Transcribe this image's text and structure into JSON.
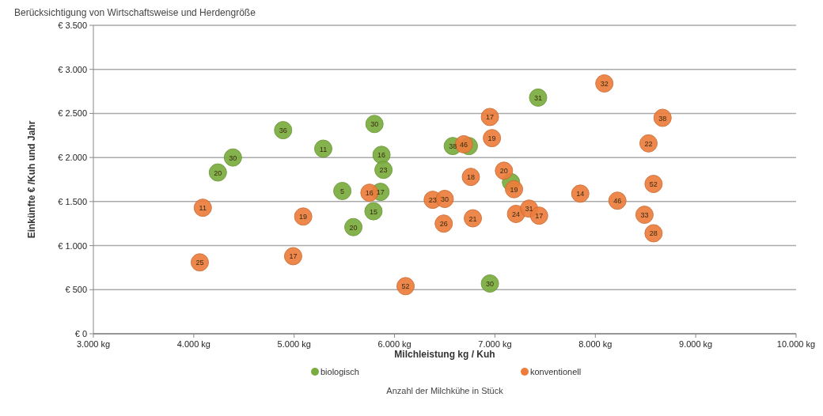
{
  "chart_data": {
    "type": "scatter",
    "title": "Berücksichtigung von Wirtschaftsweise und Herdengröße",
    "xlabel": "Milchleistung kg / Kuh",
    "ylabel": "Einkünfte € /Kuh und Jahr",
    "xlim": [
      3000,
      10000
    ],
    "ylim": [
      0,
      3500
    ],
    "xticks": [
      {
        "value": 3000,
        "label": "3.000 kg"
      },
      {
        "value": 4000,
        "label": "4.000 kg"
      },
      {
        "value": 5000,
        "label": "5.000 kg"
      },
      {
        "value": 6000,
        "label": "6.000 kg"
      },
      {
        "value": 7000,
        "label": "7.000 kg"
      },
      {
        "value": 8000,
        "label": "8.000 kg"
      },
      {
        "value": 9000,
        "label": "9.000 kg"
      },
      {
        "value": 10000,
        "label": "10.000 kg"
      }
    ],
    "yticks": [
      {
        "value": 0,
        "label": "€ 0"
      },
      {
        "value": 500,
        "label": "€ 500"
      },
      {
        "value": 1000,
        "label": "€ 1.000"
      },
      {
        "value": 1500,
        "label": "€ 1.500"
      },
      {
        "value": 2000,
        "label": "€ 2.000"
      },
      {
        "value": 2500,
        "label": "€ 2.500"
      },
      {
        "value": 3000,
        "label": "€ 3.000"
      },
      {
        "value": 3500,
        "label": "€ 3.500"
      }
    ],
    "grid": "y",
    "legend": "bottom",
    "marker": "circle",
    "annotations": [
      "Anzahl der Milchkühe in Stück",
      {
        "text": "36",
        "x": 4890,
        "y": 2310
      },
      {
        "text": "30",
        "x": 4390,
        "y": 2000
      },
      {
        "text": "20",
        "x": 4240,
        "y": 1830
      },
      {
        "text": "11",
        "x": 5290,
        "y": 2100
      },
      {
        "text": "30",
        "x": 5800,
        "y": 2380
      },
      {
        "text": "16",
        "x": 5870,
        "y": 2030
      },
      {
        "text": "23",
        "x": 5890,
        "y": 1860
      },
      {
        "text": "5",
        "x": 5480,
        "y": 1620
      },
      {
        "text": "17",
        "x": 5860,
        "y": 1610
      },
      {
        "text": "15",
        "x": 5790,
        "y": 1390
      },
      {
        "text": "20",
        "x": 5590,
        "y": 1210
      },
      {
        "text": "31",
        "x": 7430,
        "y": 2680
      },
      {
        "text": "38",
        "x": 6580,
        "y": 2130
      },
      {
        "text": "30",
        "x": 6950,
        "y": 570
      },
      {
        "text": "11",
        "x": 4090,
        "y": 1430
      },
      {
        "text": "19",
        "x": 5090,
        "y": 1330
      },
      {
        "text": "25",
        "x": 4060,
        "y": 810
      },
      {
        "text": "17",
        "x": 4990,
        "y": 880
      },
      {
        "text": "16",
        "x": 5750,
        "y": 1600
      },
      {
        "text": "52",
        "x": 6110,
        "y": 540
      },
      {
        "text": "32",
        "x": 8090,
        "y": 2840
      },
      {
        "text": "17",
        "x": 6950,
        "y": 2460
      },
      {
        "text": "19",
        "x": 6970,
        "y": 2220
      },
      {
        "text": "46",
        "x": 6690,
        "y": 2150
      },
      {
        "text": "38",
        "x": 8670,
        "y": 2450
      },
      {
        "text": "22",
        "x": 8530,
        "y": 2160
      },
      {
        "text": "20",
        "x": 7090,
        "y": 1850
      },
      {
        "text": "18",
        "x": 6760,
        "y": 1780
      },
      {
        "text": "19",
        "x": 7190,
        "y": 1640
      },
      {
        "text": "23",
        "x": 6380,
        "y": 1520
      },
      {
        "text": "30",
        "x": 6500,
        "y": 1530
      },
      {
        "text": "26",
        "x": 6490,
        "y": 1250
      },
      {
        "text": "21",
        "x": 6780,
        "y": 1310
      },
      {
        "text": "24",
        "x": 7210,
        "y": 1360
      },
      {
        "text": "31",
        "x": 7340,
        "y": 1420
      },
      {
        "text": "17",
        "x": 7440,
        "y": 1340
      },
      {
        "text": "14",
        "x": 7850,
        "y": 1590
      },
      {
        "text": "46",
        "x": 8220,
        "y": 1510
      },
      {
        "text": "52",
        "x": 8580,
        "y": 1700
      },
      {
        "text": "33",
        "x": 8490,
        "y": 1350
      },
      {
        "text": "28",
        "x": 8580,
        "y": 1140
      }
    ],
    "series": [
      {
        "name": "biologisch",
        "color": "#7aad3f",
        "x": [
          4890,
          4390,
          4240,
          5290,
          5800,
          5870,
          5890,
          5480,
          5860,
          5790,
          5590,
          7430,
          6580,
          6740,
          7160,
          6950
        ],
        "values": [
          2310,
          2000,
          1830,
          2100,
          2380,
          2030,
          1860,
          1620,
          1610,
          1390,
          1210,
          2680,
          2130,
          2130,
          1720,
          570
        ]
      },
      {
        "name": "konventionell",
        "color": "#ec7d3c",
        "x": [
          4090,
          5090,
          4060,
          4990,
          5750,
          6110,
          8090,
          6950,
          6970,
          6690,
          8670,
          8530,
          7090,
          6760,
          7190,
          6380,
          6500,
          6490,
          6780,
          7210,
          7340,
          7440,
          7850,
          8220,
          8580,
          8490,
          8580
        ],
        "values": [
          1430,
          1330,
          810,
          880,
          1600,
          540,
          2840,
          2460,
          2220,
          2150,
          2450,
          2160,
          1850,
          1780,
          1640,
          1520,
          1530,
          1250,
          1310,
          1360,
          1420,
          1340,
          1590,
          1510,
          1700,
          1350,
          1140
        ]
      }
    ]
  }
}
